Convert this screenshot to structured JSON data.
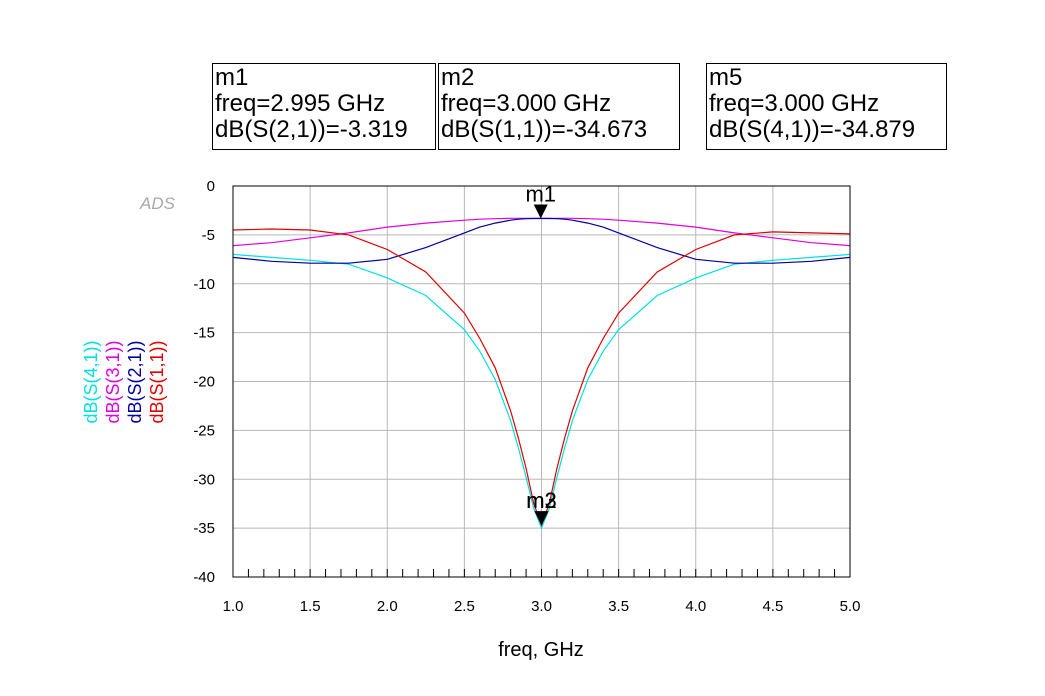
{
  "markers": [
    {
      "name": "m1",
      "freq_text": "freq=2.995 GHz",
      "value_text": "dB(S(2,1))=-3.319",
      "freq": 2.995,
      "value": -3.319
    },
    {
      "name": "m2",
      "freq_text": "freq=3.000 GHz",
      "value_text": "dB(S(1,1))=-34.673",
      "freq": 3.0,
      "value": -34.673
    },
    {
      "name": "m5",
      "freq_text": "freq=3.000 GHz",
      "value_text": "dB(S(4,1))=-34.879",
      "freq": 3.0,
      "value": -34.879
    }
  ],
  "watermark": "ADS",
  "chart_data": {
    "type": "line",
    "title": "",
    "xlabel": "freq, GHz",
    "ylabel": "",
    "xlim": [
      1.0,
      5.0
    ],
    "ylim": [
      -40,
      0
    ],
    "x_ticks": [
      1.0,
      1.5,
      2.0,
      2.5,
      3.0,
      3.5,
      4.0,
      4.5,
      5.0
    ],
    "x_tick_labels": [
      "1.0",
      "1.5",
      "2.0",
      "2.5",
      "3.0",
      "3.5",
      "4.0",
      "4.5",
      "5.0"
    ],
    "y_ticks": [
      0,
      -5,
      -10,
      -15,
      -20,
      -25,
      -30,
      -35,
      -40
    ],
    "y_tick_labels": [
      "0",
      "-5",
      "-10",
      "-15",
      "-20",
      "-25",
      "-30",
      "-35",
      "-40"
    ],
    "grid": true,
    "legend_placement": "left-vertical",
    "x": [
      1.0,
      1.25,
      1.5,
      1.75,
      2.0,
      2.25,
      2.5,
      2.6,
      2.7,
      2.8,
      2.85,
      2.9,
      2.95,
      3.0,
      3.05,
      3.1,
      3.15,
      3.2,
      3.3,
      3.4,
      3.5,
      3.75,
      4.0,
      4.25,
      4.5,
      4.75,
      5.0
    ],
    "series": [
      {
        "name": "dB(S(4,1))",
        "color": "#00e0e0",
        "values": [
          -7.0,
          -7.3,
          -7.6,
          -8.0,
          -9.4,
          -11.2,
          -14.7,
          -16.9,
          -19.8,
          -24.0,
          -26.8,
          -29.8,
          -33.0,
          -35.0,
          -33.0,
          -29.8,
          -26.8,
          -24.0,
          -19.8,
          -16.9,
          -14.7,
          -11.2,
          -9.4,
          -8.0,
          -7.6,
          -7.3,
          -7.0
        ]
      },
      {
        "name": "dB(S(3,1))",
        "color": "#e000e0",
        "values": [
          -6.1,
          -5.8,
          -5.3,
          -4.8,
          -4.2,
          -3.8,
          -3.5,
          -3.4,
          -3.35,
          -3.3,
          -3.3,
          -3.3,
          -3.3,
          -3.3,
          -3.3,
          -3.3,
          -3.3,
          -3.3,
          -3.35,
          -3.4,
          -3.5,
          -3.8,
          -4.2,
          -4.8,
          -5.3,
          -5.8,
          -6.1
        ]
      },
      {
        "name": "dB(S(2,1))",
        "color": "#0000a0",
        "values": [
          -7.3,
          -7.7,
          -7.9,
          -7.9,
          -7.5,
          -6.3,
          -4.8,
          -4.2,
          -3.8,
          -3.5,
          -3.4,
          -3.35,
          -3.32,
          -3.32,
          -3.32,
          -3.35,
          -3.4,
          -3.5,
          -3.8,
          -4.2,
          -4.8,
          -6.3,
          -7.5,
          -7.9,
          -7.9,
          -7.7,
          -7.3
        ]
      },
      {
        "name": "dB(S(1,1))",
        "color": "#e00000",
        "values": [
          -4.5,
          -4.4,
          -4.5,
          -5.0,
          -6.5,
          -8.8,
          -13.0,
          -15.6,
          -18.6,
          -23.0,
          -25.8,
          -28.9,
          -32.5,
          -34.7,
          -32.5,
          -28.9,
          -25.8,
          -23.0,
          -18.6,
          -15.6,
          -13.0,
          -8.8,
          -6.5,
          -5.0,
          -4.7,
          -4.8,
          -4.9
        ]
      }
    ],
    "annotations": [
      {
        "label": "m1",
        "x": 2.995,
        "y": -3.319,
        "placement": "above"
      },
      {
        "label": "m3",
        "x": 3.0,
        "y": -34.7,
        "placement": "above"
      },
      {
        "label": "m2",
        "x": 3.0,
        "y": -34.7,
        "placement": "above"
      }
    ]
  }
}
